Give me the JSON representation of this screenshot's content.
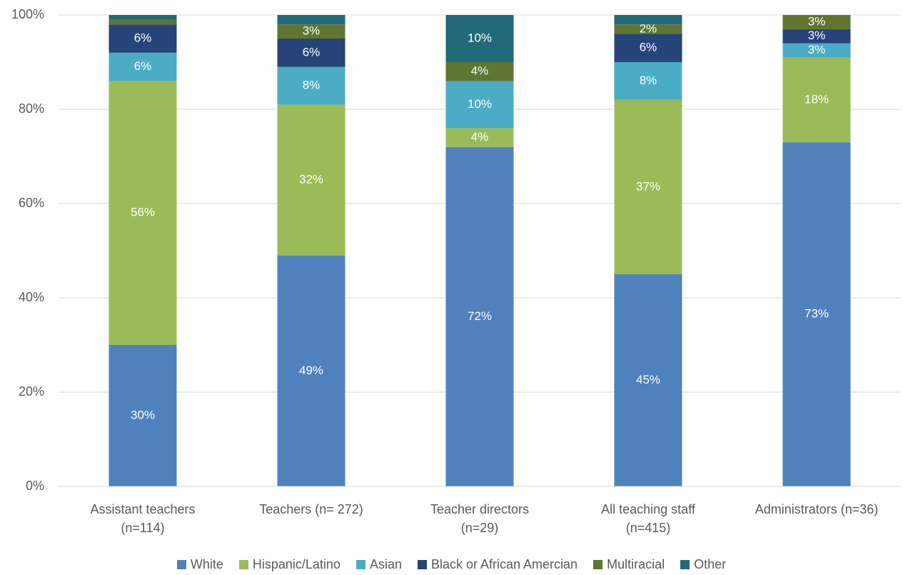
{
  "chart_data": {
    "type": "stacked_bar",
    "categories": [
      "Assistant teachers\n(n=114)",
      "Teachers (n= 272)",
      "Teacher directors\n(n=29)",
      "All teaching staff\n(n=415)",
      "Administrators (n=36)"
    ],
    "series": [
      {
        "name": "White",
        "color": "#4f81bd",
        "values": [
          30,
          49,
          72,
          45,
          73
        ],
        "value_labels": [
          "30%",
          "49%",
          "72%",
          "45%",
          "73%"
        ]
      },
      {
        "name": "Hispanic/Latino",
        "color": "#9bbb59",
        "values": [
          56,
          32,
          4,
          37,
          18
        ],
        "value_labels": [
          "56%",
          "32%",
          "4%",
          "37%",
          "18%"
        ]
      },
      {
        "name": "Asian",
        "color": "#4bacc6",
        "values": [
          6,
          8,
          10,
          8,
          3
        ],
        "value_labels": [
          "6%",
          "8%",
          "10%",
          "8%",
          "3%"
        ]
      },
      {
        "name": "Black or African Amercian",
        "color": "#264478",
        "values": [
          6,
          6,
          0,
          6,
          3
        ],
        "value_labels": [
          "6%",
          "6%",
          null,
          "6%",
          "3%"
        ]
      },
      {
        "name": "Multiracial",
        "color": "#5f7530",
        "values": [
          1,
          3,
          4,
          2,
          3
        ],
        "value_labels": [
          null,
          "3%",
          "4%",
          "2%",
          "3%"
        ]
      },
      {
        "name": "Other",
        "color": "#226a7a",
        "values": [
          1,
          2,
          10,
          2,
          0
        ],
        "value_labels": [
          null,
          null,
          "10%",
          null,
          null
        ]
      }
    ],
    "ylim": [
      0,
      100
    ],
    "yticks": [
      {
        "value": 0,
        "label": "0%"
      },
      {
        "value": 20,
        "label": "20%"
      },
      {
        "value": 40,
        "label": "40%"
      },
      {
        "value": 60,
        "label": "60%"
      },
      {
        "value": 80,
        "label": "80%"
      },
      {
        "value": 100,
        "label": "100%"
      }
    ],
    "grid": true,
    "legend": "bottom"
  }
}
